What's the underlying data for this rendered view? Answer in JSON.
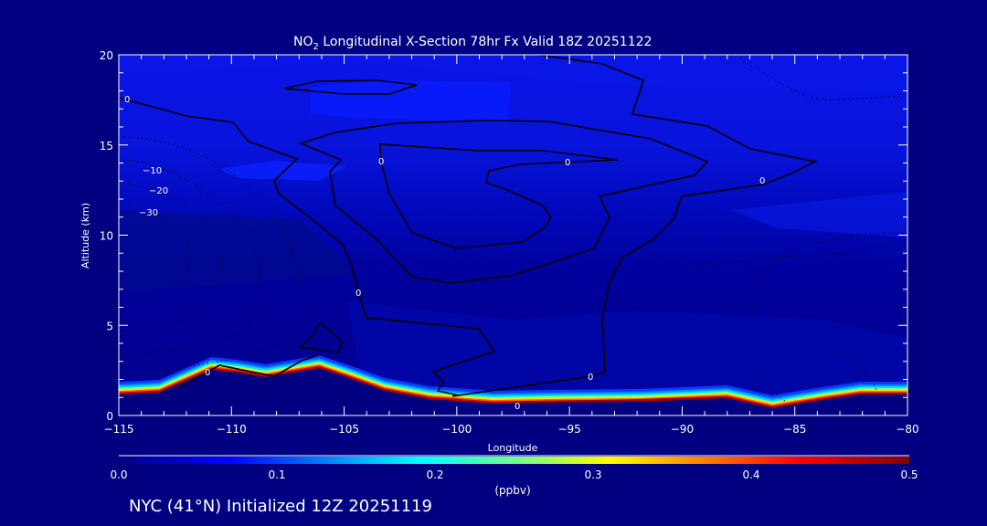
{
  "chart_data": {
    "type": "heatmap",
    "title_prefix": "NO",
    "title_subscript": "2",
    "title_rest": " Longitudinal X-Section 78hr  Fx Valid 18Z 20251122",
    "xlabel": "Longitude",
    "ylabel": "Altitude (km)",
    "xlim": [
      -115,
      -80
    ],
    "ylim": [
      0,
      20
    ],
    "x_ticks": [
      -115,
      -110,
      -105,
      -100,
      -95,
      -90,
      -85,
      -80
    ],
    "x_tick_labels": [
      "−115",
      "−110",
      "−105",
      "−100",
      "−95",
      "−90",
      "−85",
      "−80"
    ],
    "y_ticks": [
      0,
      5,
      10,
      15,
      20
    ],
    "y_tick_labels": [
      "0",
      "5",
      "10",
      "15",
      "20"
    ],
    "terrain_km": {
      "lon": [
        -115,
        -113.2,
        -110.9,
        -109.7,
        -108.5,
        -107.3,
        -106.1,
        -104.9,
        -103.2,
        -101.2,
        -98.4,
        -95.9,
        -91.9,
        -88.0,
        -86.0,
        -83.8,
        -82.1,
        -80
      ],
      "alt": [
        1.16,
        1.27,
        2.53,
        2.38,
        2.13,
        2.38,
        2.63,
        2.13,
        1.37,
        0.91,
        0.66,
        0.71,
        0.76,
        0.96,
        0.41,
        0.86,
        1.16,
        1.16
      ]
    },
    "contour_labels": [
      "0",
      "0",
      "0",
      "0",
      "0",
      "0",
      "0",
      "10",
      "0",
      "−10",
      "−20",
      "−30"
    ],
    "colorbar": {
      "label": "(ppbv)",
      "range": [
        0.0,
        0.5
      ],
      "tick_labels": [
        "0.0",
        "0.1",
        "0.2",
        "0.3",
        "0.4",
        "0.5"
      ],
      "colors": [
        "#000080",
        "#0000ff",
        "#00ffff",
        "#ffff00",
        "#ff0000",
        "#800000"
      ]
    },
    "footer": "NYC (41°N) Initialized 12Z 20251119"
  }
}
